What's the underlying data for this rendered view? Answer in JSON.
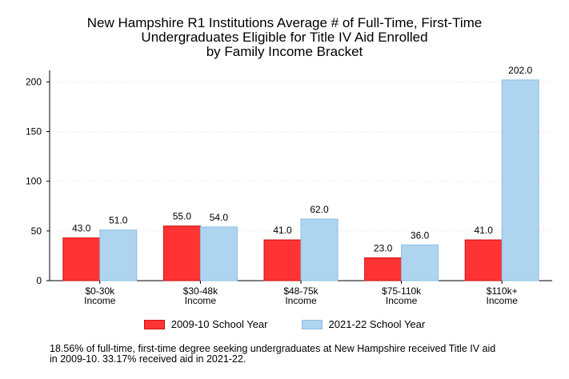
{
  "chart_data": {
    "type": "bar",
    "title_lines": [
      "New Hampshire R1 Institutions Average # of Full-Time, First-Time",
      "Undergraduates Eligible for Title IV Aid Enrolled",
      "by Family Income Bracket"
    ],
    "categories": [
      [
        "$0-30k",
        "Income"
      ],
      [
        "$30-48k",
        "Income"
      ],
      [
        "$48-75k",
        "Income"
      ],
      [
        "$75-110k",
        "Income"
      ],
      [
        "$110k+",
        "Income"
      ]
    ],
    "series": [
      {
        "name": "2009-10 School Year",
        "values": [
          43.0,
          55.0,
          41.0,
          23.0,
          41.0
        ],
        "labels": [
          "43.0",
          "55.0",
          "41.0",
          "23.0",
          "41.0"
        ],
        "color": "#ff3333",
        "stroke": "#cc1111"
      },
      {
        "name": "2021-22 School Year",
        "values": [
          51.0,
          54.0,
          62.0,
          36.0,
          202.0
        ],
        "labels": [
          "51.0",
          "54.0",
          "62.0",
          "36.0",
          "202.0"
        ],
        "color": "#afd4f0",
        "stroke": "#8ebfe3"
      }
    ],
    "yticks": [
      "0",
      "50",
      "100",
      "150",
      "200"
    ],
    "ylim": [
      0,
      210
    ],
    "grid": true,
    "legend_position": "bottom",
    "footnote_lines": [
      "18.56% of full-time, first-time degree seeking undergraduates at New Hampshire received Title IV aid",
      "in 2009-10. 33.17% received aid in 2021-22."
    ]
  }
}
